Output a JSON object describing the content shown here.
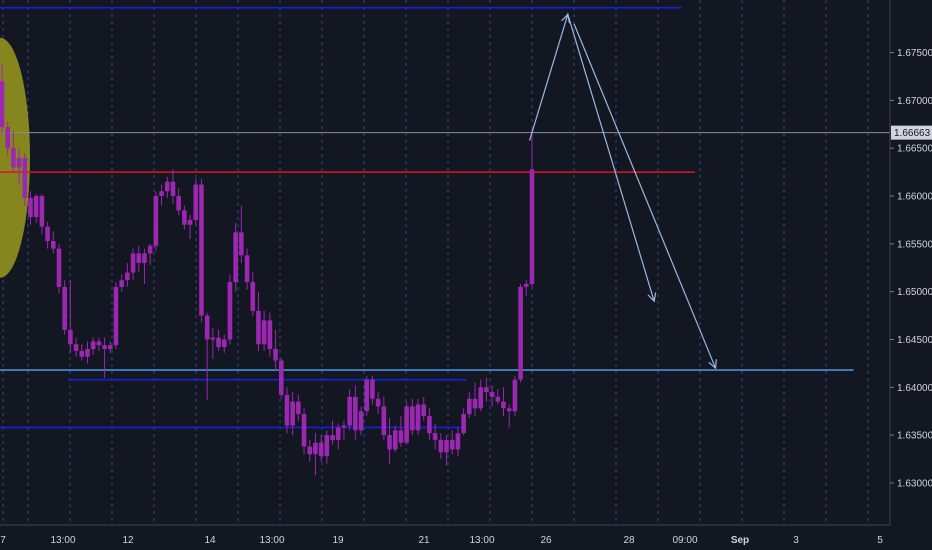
{
  "chart_data": {
    "type": "candlestick",
    "y_axis": {
      "min": 1.6256,
      "max": 1.6805,
      "ticks": [
        "1.67500",
        "1.67000",
        "1.66500",
        "1.66000",
        "1.65500",
        "1.65000",
        "1.64500",
        "1.64000",
        "1.63500",
        "1.63000"
      ],
      "tick_values": [
        1.675,
        1.67,
        1.665,
        1.66,
        1.655,
        1.65,
        1.645,
        1.64,
        1.635,
        1.63
      ],
      "current_price_label": "1.66663",
      "current_price": 1.66663
    },
    "x_axis": {
      "labels": [
        "7",
        "13:00",
        "12",
        "13:00",
        "14",
        "13:00",
        "19",
        "13:00",
        "21",
        "13:00",
        "26",
        "28",
        "09:00",
        "Sep",
        "3",
        "5"
      ],
      "bold_labels": [
        "Sep"
      ]
    },
    "grid": "vertical-dashed",
    "colors": {
      "background": "#131722",
      "candle": "#9c27b0",
      "resistance_line": "#e3141c",
      "support_line": "#1a1fd6",
      "target_line": "#4f8fd6",
      "arrow": "#9cb8e0",
      "highlight_ellipse": "#9a9a1c",
      "axis_text": "#d1d4dc"
    },
    "candles": [
      [
        1.672,
        1.6738,
        1.6665,
        1.6672
      ],
      [
        1.6672,
        1.6678,
        1.6642,
        1.665
      ],
      [
        1.665,
        1.6668,
        1.6625,
        1.663
      ],
      [
        1.663,
        1.665,
        1.6612,
        1.664
      ],
      [
        1.664,
        1.6645,
        1.659,
        1.6598
      ],
      [
        1.6598,
        1.6605,
        1.657,
        1.6578
      ],
      [
        1.6578,
        1.6602,
        1.6572,
        1.66
      ],
      [
        1.66,
        1.6602,
        1.656,
        1.6568
      ],
      [
        1.6568,
        1.6573,
        1.6545,
        1.6553
      ],
      [
        1.6553,
        1.6563,
        1.654,
        1.6545
      ],
      [
        1.6545,
        1.655,
        1.6498,
        1.6505
      ],
      [
        1.6505,
        1.6512,
        1.6455,
        1.646
      ],
      [
        1.646,
        1.6512,
        1.6436,
        1.6445
      ],
      [
        1.6445,
        1.6452,
        1.6432,
        1.6438
      ],
      [
        1.6438,
        1.6445,
        1.6428,
        1.6432
      ],
      [
        1.6432,
        1.6448,
        1.6425,
        1.644
      ],
      [
        1.644,
        1.6452,
        1.6434,
        1.6448
      ],
      [
        1.6448,
        1.6452,
        1.6438,
        1.6444
      ],
      [
        1.6444,
        1.6452,
        1.641,
        1.644
      ],
      [
        1.644,
        1.6448,
        1.6436,
        1.6444
      ],
      [
        1.6444,
        1.651,
        1.644,
        1.6505
      ],
      [
        1.6505,
        1.6518,
        1.65,
        1.6512
      ],
      [
        1.6512,
        1.653,
        1.6505,
        1.652
      ],
      [
        1.652,
        1.6545,
        1.6512,
        1.654
      ],
      [
        1.654,
        1.6548,
        1.652,
        1.653
      ],
      [
        1.653,
        1.6545,
        1.6508,
        1.654
      ],
      [
        1.654,
        1.655,
        1.6528,
        1.6548
      ],
      [
        1.6548,
        1.6605,
        1.6542,
        1.66
      ],
      [
        1.66,
        1.6612,
        1.659,
        1.6605
      ],
      [
        1.6605,
        1.662,
        1.6598,
        1.6615
      ],
      [
        1.6615,
        1.6628,
        1.6592,
        1.66
      ],
      [
        1.66,
        1.6608,
        1.658,
        1.6585
      ],
      [
        1.6585,
        1.659,
        1.6565,
        1.657
      ],
      [
        1.657,
        1.658,
        1.6555,
        1.6575
      ],
      [
        1.6575,
        1.6618,
        1.657,
        1.6612
      ],
      [
        1.6612,
        1.6618,
        1.6468,
        1.6475
      ],
      [
        1.6475,
        1.6478,
        1.6387,
        1.645
      ],
      [
        1.645,
        1.6462,
        1.643,
        1.6452
      ],
      [
        1.6452,
        1.646,
        1.6438,
        1.6442
      ],
      [
        1.6442,
        1.6455,
        1.6436,
        1.645
      ],
      [
        1.645,
        1.6518,
        1.6445,
        1.651
      ],
      [
        1.651,
        1.6572,
        1.65,
        1.6562
      ],
      [
        1.6562,
        1.659,
        1.653,
        1.6538
      ],
      [
        1.6538,
        1.6545,
        1.6502,
        1.651
      ],
      [
        1.651,
        1.652,
        1.6475,
        1.648
      ],
      [
        1.648,
        1.65,
        1.6438,
        1.6445
      ],
      [
        1.6445,
        1.648,
        1.6438,
        1.647
      ],
      [
        1.647,
        1.6478,
        1.6432,
        1.644
      ],
      [
        1.644,
        1.646,
        1.6418,
        1.6428
      ],
      [
        1.6428,
        1.643,
        1.6388,
        1.6392
      ],
      [
        1.6392,
        1.64,
        1.6352,
        1.636
      ],
      [
        1.636,
        1.6395,
        1.635,
        1.6385
      ],
      [
        1.6385,
        1.6392,
        1.6365,
        1.6372
      ],
      [
        1.6372,
        1.6378,
        1.633,
        1.6338
      ],
      [
        1.6338,
        1.6345,
        1.6322,
        1.633
      ],
      [
        1.633,
        1.6352,
        1.6308,
        1.6342
      ],
      [
        1.6342,
        1.635,
        1.6322,
        1.6328
      ],
      [
        1.6328,
        1.6355,
        1.632,
        1.635
      ],
      [
        1.635,
        1.6365,
        1.634,
        1.6345
      ],
      [
        1.6345,
        1.6362,
        1.6335,
        1.6358
      ],
      [
        1.6358,
        1.6365,
        1.6345,
        1.636
      ],
      [
        1.636,
        1.6398,
        1.6355,
        1.639
      ],
      [
        1.639,
        1.6402,
        1.6345,
        1.6355
      ],
      [
        1.6355,
        1.638,
        1.635,
        1.6375
      ],
      [
        1.6375,
        1.6412,
        1.637,
        1.6408
      ],
      [
        1.6408,
        1.6412,
        1.6382,
        1.6388
      ],
      [
        1.6388,
        1.6395,
        1.6372,
        1.638
      ],
      [
        1.638,
        1.639,
        1.6345,
        1.635
      ],
      [
        1.635,
        1.6368,
        1.632,
        1.6335
      ],
      [
        1.6335,
        1.636,
        1.6332,
        1.6355
      ],
      [
        1.6355,
        1.637,
        1.6338,
        1.6342
      ],
      [
        1.6342,
        1.6385,
        1.634,
        1.638
      ],
      [
        1.638,
        1.6388,
        1.635,
        1.6355
      ],
      [
        1.6355,
        1.6388,
        1.635,
        1.6382
      ],
      [
        1.6382,
        1.639,
        1.6365,
        1.637
      ],
      [
        1.637,
        1.6378,
        1.6345,
        1.6352
      ],
      [
        1.6352,
        1.6362,
        1.6335,
        1.6345
      ],
      [
        1.6345,
        1.6352,
        1.6325,
        1.6332
      ],
      [
        1.6332,
        1.635,
        1.6318,
        1.6345
      ],
      [
        1.6345,
        1.6355,
        1.633,
        1.6335
      ],
      [
        1.6335,
        1.6358,
        1.6328,
        1.6352
      ],
      [
        1.6352,
        1.6378,
        1.635,
        1.6372
      ],
      [
        1.6372,
        1.6395,
        1.6368,
        1.6388
      ],
      [
        1.6388,
        1.6405,
        1.637,
        1.6378
      ],
      [
        1.6378,
        1.6408,
        1.6375,
        1.64
      ],
      [
        1.64,
        1.641,
        1.6385,
        1.6395
      ],
      [
        1.6395,
        1.6402,
        1.638,
        1.639
      ],
      [
        1.639,
        1.6398,
        1.6382,
        1.6385
      ],
      [
        1.6385,
        1.64,
        1.637,
        1.6378
      ],
      [
        1.6378,
        1.6382,
        1.6358,
        1.6375
      ],
      [
        1.6375,
        1.6412,
        1.637,
        1.6408
      ],
      [
        1.6408,
        1.6508,
        1.6405,
        1.6505
      ],
      [
        1.6505,
        1.6512,
        1.6495,
        1.6508
      ],
      [
        1.6508,
        1.667,
        1.6505,
        1.6628
      ]
    ],
    "horizontal_lines": [
      {
        "price": 1.6797,
        "role": "top-level",
        "x_from": 0,
        "x_to": 0.766
      },
      {
        "price": 1.6625,
        "role": "resistance",
        "x_from": 0,
        "x_to": 0.781
      },
      {
        "price": 1.6418,
        "role": "target",
        "x_from": 0,
        "x_to": 0.959
      },
      {
        "price": 1.6408,
        "role": "range-top",
        "x_from": 0.077,
        "x_to": 0.524
      },
      {
        "price": 1.6358,
        "role": "range-bottom",
        "x_from": 0,
        "x_to": 0.524
      }
    ],
    "projection_paths": [
      {
        "points": [
          [
            1.6658,
            0.595
          ],
          [
            1.679,
            0.638
          ],
          [
            1.649,
            0.735
          ]
        ]
      },
      {
        "points": [
          [
            1.678,
            0.645
          ],
          [
            1.642,
            0.804
          ]
        ]
      }
    ]
  }
}
